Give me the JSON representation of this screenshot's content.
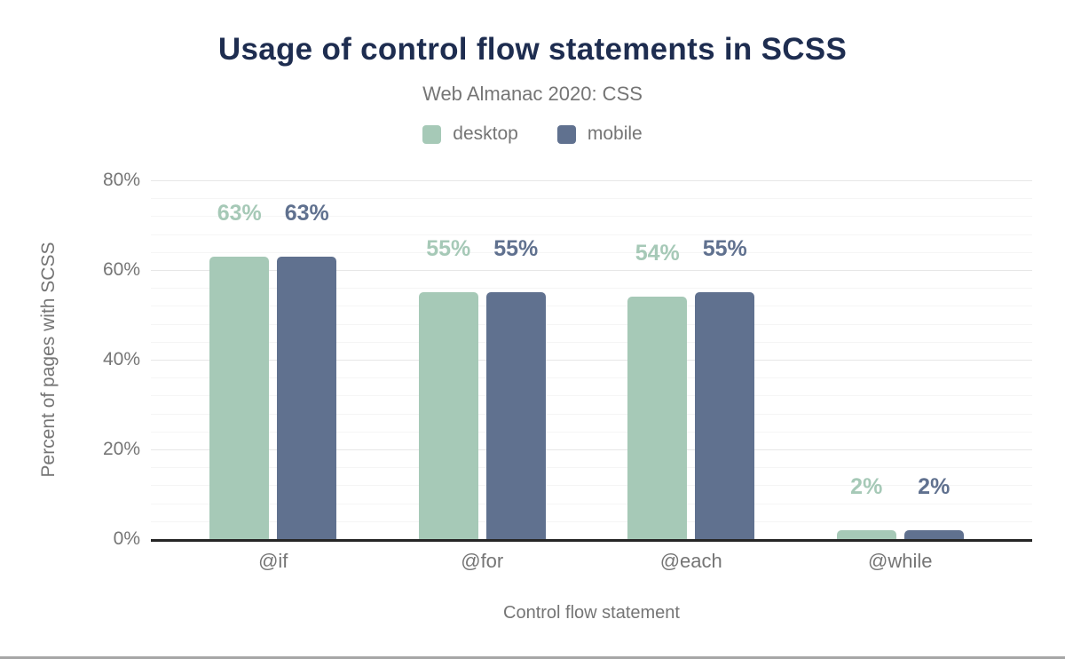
{
  "frame": {
    "background": "#ffffff",
    "bottom_rule_color": "#a6a6a6"
  },
  "chart_data": {
    "type": "bar",
    "title": "Usage of control flow statements in SCSS",
    "subtitle": "Web Almanac 2020: CSS",
    "xlabel": "Control flow statement",
    "ylabel": "Percent of pages with SCSS",
    "categories": [
      "@if",
      "@for",
      "@each",
      "@while"
    ],
    "series": [
      {
        "name": "desktop",
        "color": "#a6c9b7",
        "values": [
          63,
          55,
          54,
          2
        ]
      },
      {
        "name": "mobile",
        "color": "#60718f",
        "values": [
          63,
          55,
          55,
          2
        ]
      }
    ],
    "value_suffix": "%",
    "ylim": [
      0,
      80
    ],
    "y_ticks": [
      {
        "value": 0,
        "label": "0%"
      },
      {
        "value": 20,
        "label": "20%"
      },
      {
        "value": 40,
        "label": "40%"
      },
      {
        "value": 60,
        "label": "60%"
      },
      {
        "value": 80,
        "label": "80%"
      }
    ],
    "y_major_step": 20,
    "y_minor_step": 4,
    "grid": true,
    "legend_position": "top-center",
    "colors": {
      "title": "#1e2d50",
      "muted_text": "#757575",
      "axis_line": "#262626",
      "grid_major": "#e7e7e7",
      "grid_minor": "#f5f5f5"
    }
  }
}
